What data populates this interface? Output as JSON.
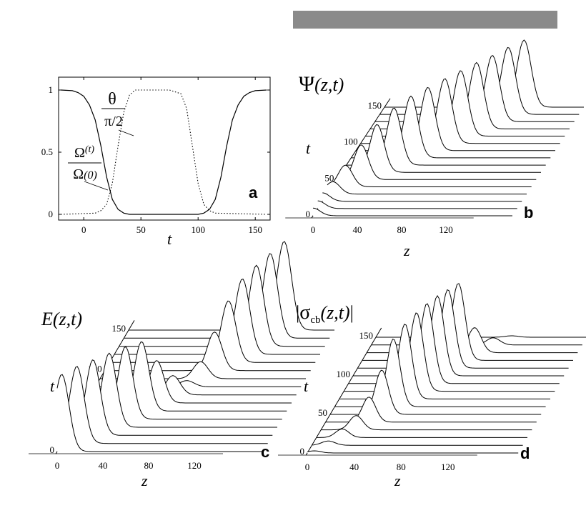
{
  "colors": {
    "background": "#8a8a8a",
    "panel": "#ffffff",
    "ink": "#000000"
  },
  "chart_data": [
    {
      "panel_label": "a",
      "type": "line",
      "xlabel": "t",
      "xlim": [
        -22,
        163
      ],
      "ylim": [
        0,
        1
      ],
      "x_ticks": [
        "0",
        "50",
        "100",
        "150"
      ],
      "y_ticks": [
        "0",
        "0.5",
        "1"
      ],
      "series": [
        {
          "label_text": "Ω(t) / Ω(0)",
          "style": "solid",
          "points": [
            [
              -20,
              1
            ],
            [
              -10,
              0.995
            ],
            [
              -5,
              0.98
            ],
            [
              0,
              0.95
            ],
            [
              5,
              0.88
            ],
            [
              10,
              0.76
            ],
            [
              15,
              0.55
            ],
            [
              20,
              0.3
            ],
            [
              25,
              0.12
            ],
            [
              30,
              0.04
            ],
            [
              35,
              0.01
            ],
            [
              40,
              0
            ],
            [
              100,
              0
            ],
            [
              105,
              0.01
            ],
            [
              110,
              0.04
            ],
            [
              115,
              0.12
            ],
            [
              120,
              0.3
            ],
            [
              125,
              0.55
            ],
            [
              130,
              0.76
            ],
            [
              135,
              0.88
            ],
            [
              140,
              0.95
            ],
            [
              145,
              0.98
            ],
            [
              150,
              0.995
            ],
            [
              160,
              1
            ]
          ]
        },
        {
          "label_text": "θ / π/2",
          "style": "dotted",
          "points": [
            [
              -20,
              0
            ],
            [
              10,
              0.01
            ],
            [
              15,
              0.03
            ],
            [
              20,
              0.08
            ],
            [
              25,
              0.25
            ],
            [
              30,
              0.55
            ],
            [
              35,
              0.82
            ],
            [
              40,
              0.96
            ],
            [
              45,
              1
            ],
            [
              75,
              1
            ],
            [
              85,
              0.97
            ],
            [
              90,
              0.85
            ],
            [
              95,
              0.55
            ],
            [
              100,
              0.25
            ],
            [
              105,
              0.08
            ],
            [
              110,
              0.03
            ],
            [
              115,
              0.01
            ],
            [
              160,
              0
            ]
          ]
        }
      ]
    },
    {
      "panel_label": "b",
      "type": "area",
      "title": "Ψ(z,t)",
      "xlabel": "z",
      "ylabel": "t",
      "x_ticks": [
        "0",
        "40",
        "80",
        "120"
      ],
      "t_ticks": [
        "0",
        "50",
        "100",
        "150"
      ],
      "t_values": [
        0,
        10,
        20,
        30,
        40,
        50,
        60,
        70,
        80,
        90,
        100,
        110,
        120,
        130,
        140,
        150
      ],
      "pulse_center_z": [
        0,
        0,
        0,
        5,
        12,
        22,
        32,
        43,
        54,
        65,
        76,
        86,
        96,
        106,
        116,
        126
      ],
      "pulse_height": [
        0.1,
        0.1,
        0.11,
        0.16,
        0.28,
        0.45,
        0.62,
        0.74,
        0.8,
        0.82,
        0.84,
        0.85,
        0.86,
        0.86,
        0.87,
        0.87
      ]
    },
    {
      "panel_label": "c",
      "type": "area",
      "title": "E(z,t)",
      "xlabel": "z",
      "ylabel": "t",
      "x_ticks": [
        "0",
        "40",
        "80",
        "120"
      ],
      "t_ticks": [
        "0",
        "50",
        "100",
        "150"
      ],
      "t_values": [
        0,
        10,
        20,
        30,
        40,
        50,
        60,
        70,
        80,
        90,
        100,
        110,
        120,
        130,
        140,
        150
      ],
      "pulse_center_z": [
        4,
        13,
        23,
        33,
        43,
        53,
        62,
        72,
        80,
        88,
        96,
        104,
        112,
        120,
        128,
        136
      ],
      "pulse_height": [
        1.0,
        1.0,
        0.98,
        0.96,
        0.94,
        0.9,
        0.55,
        0.25,
        0.08,
        0.22,
        0.5,
        0.8,
        0.98,
        1.05,
        1.1,
        1.15
      ]
    },
    {
      "panel_label": "d",
      "type": "area",
      "title": "|σcb(z,t)|",
      "xlabel": "z",
      "ylabel": "t",
      "x_ticks": [
        "0",
        "40",
        "80",
        "120"
      ],
      "t_ticks": [
        "0",
        "50",
        "100",
        "150"
      ],
      "t_values": [
        0,
        10,
        20,
        30,
        40,
        50,
        60,
        70,
        80,
        90,
        100,
        110,
        120,
        130,
        140,
        150
      ],
      "pulse_center_z": [
        6,
        14,
        22,
        30,
        37,
        44,
        50,
        56,
        62,
        67,
        72,
        77,
        82,
        92,
        104,
        116
      ],
      "pulse_height": [
        0.03,
        0.06,
        0.12,
        0.2,
        0.35,
        0.62,
        0.95,
        1.05,
        1.1,
        1.12,
        1.12,
        1.1,
        1.08,
        0.35,
        0.1,
        0.02
      ]
    }
  ]
}
